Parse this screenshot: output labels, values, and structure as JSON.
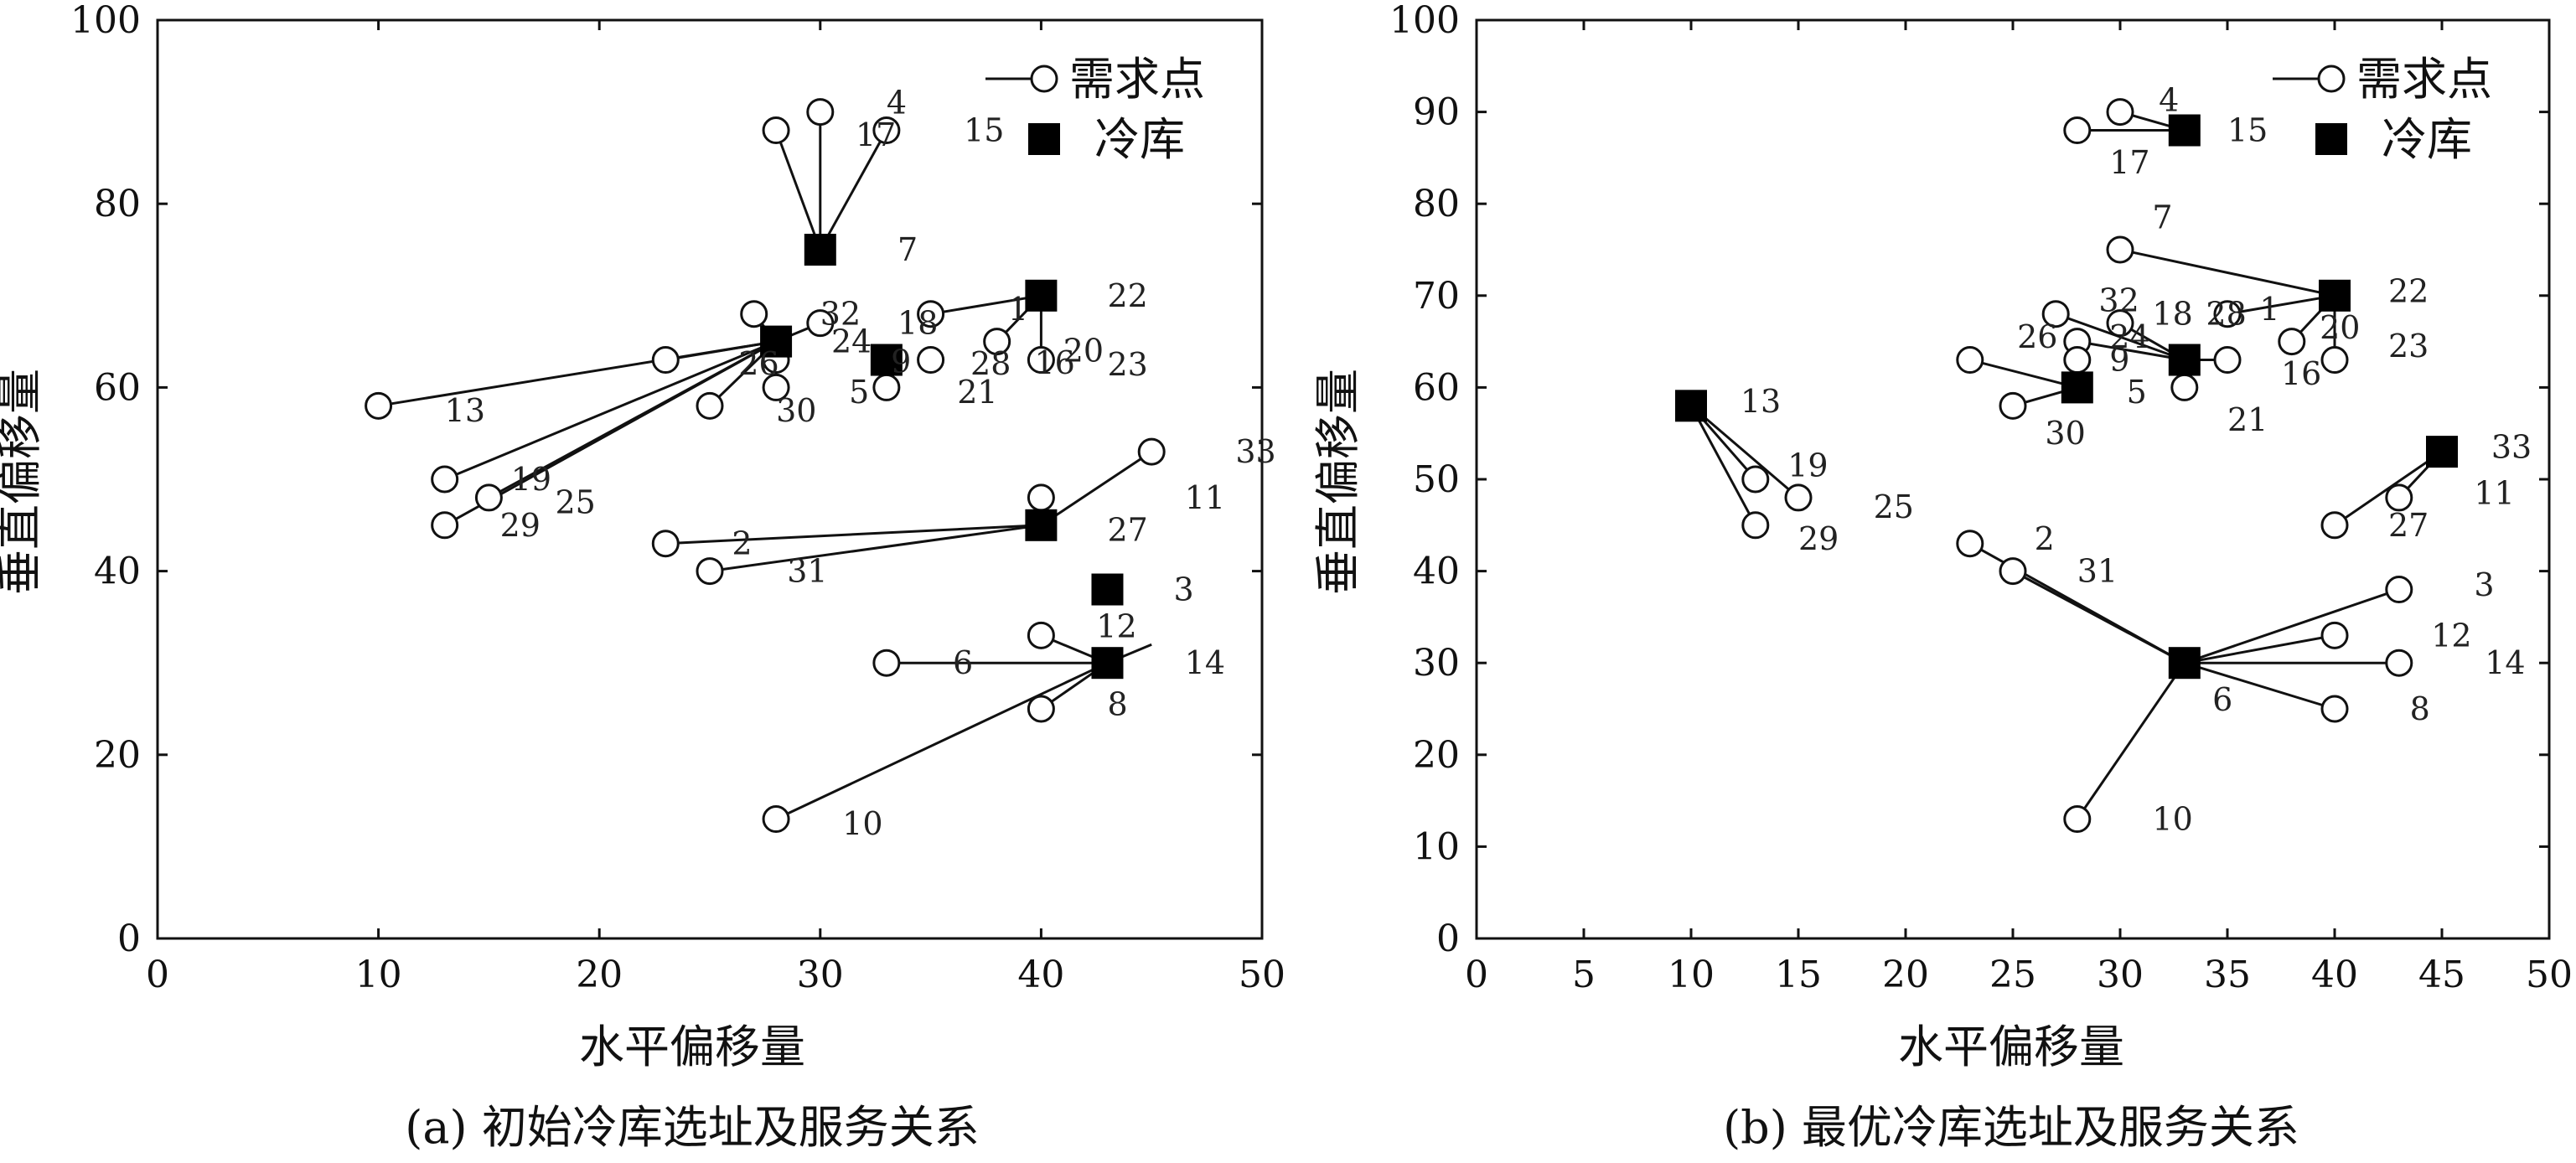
{
  "chart_data": [
    {
      "type": "scatter",
      "caption": "(a) 初始冷库选址及服务关系",
      "xlabel": "水平偏移量",
      "ylabel": "垂直偏移量",
      "xlim": [
        0,
        50
      ],
      "ylim": [
        0,
        100
      ],
      "xticks": [
        0,
        10,
        20,
        30,
        40,
        50
      ],
      "yticks": [
        0,
        20,
        40,
        60,
        80,
        100
      ],
      "legend": {
        "position": "top-right",
        "demand": "需求点",
        "storage": "冷库"
      },
      "demand_points": [
        {
          "id": "2",
          "x": 23,
          "y": 43
        },
        {
          "id": "4",
          "x": 30,
          "y": 90
        },
        {
          "id": "5",
          "x": 28,
          "y": 60
        },
        {
          "id": "6",
          "x": 33,
          "y": 30
        },
        {
          "id": "8",
          "x": 40,
          "y": 25
        },
        {
          "id": "9",
          "x": 28,
          "y": 63
        },
        {
          "id": "10",
          "x": 28,
          "y": 13
        },
        {
          "id": "11",
          "x": 40,
          "y": 48
        },
        {
          "id": "12",
          "x": 40,
          "y": 33
        },
        {
          "id": "13",
          "x": 10,
          "y": 58
        },
        {
          "id": "16",
          "x": 38,
          "y": 65
        },
        {
          "id": "17",
          "x": 28,
          "y": 88
        },
        {
          "id": "18",
          "x": 35,
          "y": 68
        },
        {
          "id": "19",
          "x": 13,
          "y": 50
        },
        {
          "id": "20",
          "x": 40,
          "y": 63
        },
        {
          "id": "21",
          "x": 33,
          "y": 60
        },
        {
          "id": "24",
          "x": 30,
          "y": 67
        },
        {
          "id": "25",
          "x": 15,
          "y": 48
        },
        {
          "id": "26",
          "x": 23,
          "y": 63
        },
        {
          "id": "28",
          "x": 35,
          "y": 63
        },
        {
          "id": "29",
          "x": 13,
          "y": 45
        },
        {
          "id": "30",
          "x": 25,
          "y": 58
        },
        {
          "id": "31",
          "x": 25,
          "y": 40
        },
        {
          "id": "32",
          "x": 27,
          "y": 68
        },
        {
          "id": "33",
          "x": 45,
          "y": 53
        },
        {
          "id": "15",
          "x": 33,
          "y": 88
        }
      ],
      "storage_points": [
        {
          "id": "7",
          "x": 30,
          "y": 75
        },
        {
          "id": "22",
          "x": 40,
          "y": 70
        },
        {
          "id": "1",
          "x": 28,
          "y": 65
        },
        {
          "id": "",
          "x": 33,
          "y": 63
        },
        {
          "id": "27",
          "x": 40,
          "y": 45
        },
        {
          "id": "3",
          "x": 43,
          "y": 38
        },
        {
          "id": "14",
          "x": 43,
          "y": 30
        }
      ],
      "labels": [
        {
          "text": "4",
          "x": 33,
          "y": 91
        },
        {
          "text": "17",
          "x": 31.6,
          "y": 87.5
        },
        {
          "text": "15",
          "x": 36.5,
          "y": 88
        },
        {
          "text": "7",
          "x": 33.5,
          "y": 75
        },
        {
          "text": "22",
          "x": 43,
          "y": 70
        },
        {
          "text": "1",
          "x": 38.5,
          "y": 68.5
        },
        {
          "text": "32",
          "x": 30,
          "y": 68
        },
        {
          "text": "18",
          "x": 33.5,
          "y": 67
        },
        {
          "text": "24",
          "x": 30.5,
          "y": 65
        },
        {
          "text": "26",
          "x": 26.3,
          "y": 62.6
        },
        {
          "text": "9",
          "x": 33.2,
          "y": 62.8
        },
        {
          "text": "28",
          "x": 36.8,
          "y": 62.6
        },
        {
          "text": "16",
          "x": 39.7,
          "y": 62.7
        },
        {
          "text": "20",
          "x": 41,
          "y": 64
        },
        {
          "text": "23",
          "x": 43,
          "y": 62.5
        },
        {
          "text": "5",
          "x": 31.3,
          "y": 59.5
        },
        {
          "text": "21",
          "x": 36.2,
          "y": 59.5
        },
        {
          "text": "30",
          "x": 28,
          "y": 57.5
        },
        {
          "text": "13",
          "x": 13,
          "y": 57.5
        },
        {
          "text": "19",
          "x": 16,
          "y": 50
        },
        {
          "text": "25",
          "x": 18,
          "y": 47.5
        },
        {
          "text": "29",
          "x": 15.5,
          "y": 45
        },
        {
          "text": "33",
          "x": 48.8,
          "y": 53
        },
        {
          "text": "11",
          "x": 46.5,
          "y": 48
        },
        {
          "text": "27",
          "x": 43,
          "y": 44.5
        },
        {
          "text": "2",
          "x": 26,
          "y": 43
        },
        {
          "text": "31",
          "x": 28.5,
          "y": 40
        },
        {
          "text": "3",
          "x": 46,
          "y": 38
        },
        {
          "text": "12",
          "x": 42.5,
          "y": 34
        },
        {
          "text": "14",
          "x": 46.5,
          "y": 30
        },
        {
          "text": "6",
          "x": 36,
          "y": 30
        },
        {
          "text": "8",
          "x": 43,
          "y": 25.5
        },
        {
          "text": "10",
          "x": 31,
          "y": 12.5
        }
      ],
      "links": [
        {
          "from": [
            30,
            75
          ],
          "to": [
            28,
            88
          ]
        },
        {
          "from": [
            30,
            75
          ],
          "to": [
            30,
            90
          ]
        },
        {
          "from": [
            30,
            75
          ],
          "to": [
            33,
            88
          ]
        },
        {
          "from": [
            40,
            70
          ],
          "to": [
            35,
            68
          ]
        },
        {
          "from": [
            40,
            70
          ],
          "to": [
            38,
            65
          ]
        },
        {
          "from": [
            40,
            70
          ],
          "to": [
            40,
            63
          ]
        },
        {
          "from": [
            28,
            65
          ],
          "to": [
            10,
            58
          ]
        },
        {
          "from": [
            28,
            65
          ],
          "to": [
            23,
            63
          ]
        },
        {
          "from": [
            28,
            65
          ],
          "to": [
            13,
            50
          ]
        },
        {
          "from": [
            28,
            65
          ],
          "to": [
            15,
            48
          ]
        },
        {
          "from": [
            28,
            65
          ],
          "to": [
            13,
            45
          ]
        },
        {
          "from": [
            28,
            65
          ],
          "to": [
            25,
            58
          ]
        },
        {
          "from": [
            28,
            65
          ],
          "to": [
            27,
            68
          ]
        },
        {
          "from": [
            28,
            65
          ],
          "to": [
            30,
            67
          ]
        },
        {
          "from": [
            28,
            65
          ],
          "to": [
            28,
            60
          ]
        },
        {
          "from": [
            28,
            65
          ],
          "to": [
            28,
            63
          ]
        },
        {
          "from": [
            40,
            45
          ],
          "to": [
            23,
            43
          ]
        },
        {
          "from": [
            40,
            45
          ],
          "to": [
            25,
            40
          ]
        },
        {
          "from": [
            40,
            45
          ],
          "to": [
            40,
            48
          ]
        },
        {
          "from": [
            40,
            45
          ],
          "to": [
            45,
            53
          ]
        },
        {
          "from": [
            43,
            30
          ],
          "to": [
            33,
            30
          ]
        },
        {
          "from": [
            43,
            30
          ],
          "to": [
            40,
            33
          ]
        },
        {
          "from": [
            43,
            30
          ],
          "to": [
            40,
            25
          ]
        },
        {
          "from": [
            43,
            30
          ],
          "to": [
            28,
            13
          ]
        },
        {
          "from": [
            43,
            30
          ],
          "to": [
            45,
            32
          ]
        }
      ]
    },
    {
      "type": "scatter",
      "caption": "(b) 最优冷库选址及服务关系",
      "xlabel": "水平偏移量",
      "ylabel": "垂直偏移量",
      "xlim": [
        0,
        50
      ],
      "ylim": [
        0,
        100
      ],
      "xticks": [
        0,
        5,
        10,
        15,
        20,
        25,
        30,
        35,
        40,
        45,
        50
      ],
      "yticks": [
        0,
        10,
        20,
        30,
        40,
        50,
        60,
        70,
        80,
        90,
        100
      ],
      "legend": {
        "position": "top-right",
        "demand": "需求点",
        "storage": "冷库"
      },
      "demand_points": [
        {
          "id": "4",
          "x": 30,
          "y": 90
        },
        {
          "id": "17",
          "x": 28,
          "y": 88
        },
        {
          "id": "7",
          "x": 30,
          "y": 75
        },
        {
          "id": "1",
          "x": 35,
          "y": 68
        },
        {
          "id": "32",
          "x": 27,
          "y": 68
        },
        {
          "id": "18",
          "x": 30,
          "y": 67
        },
        {
          "id": "24",
          "x": 28,
          "y": 65
        },
        {
          "id": "9",
          "x": 28,
          "y": 63
        },
        {
          "id": "16",
          "x": 35,
          "y": 63
        },
        {
          "id": "20",
          "x": 38,
          "y": 65
        },
        {
          "id": "23",
          "x": 40,
          "y": 63
        },
        {
          "id": "26",
          "x": 23,
          "y": 63
        },
        {
          "id": "21",
          "x": 33,
          "y": 60
        },
        {
          "id": "30",
          "x": 25,
          "y": 58
        },
        {
          "id": "19",
          "x": 13,
          "y": 50
        },
        {
          "id": "25",
          "x": 15,
          "y": 48
        },
        {
          "id": "29",
          "x": 13,
          "y": 45
        },
        {
          "id": "11",
          "x": 43,
          "y": 48
        },
        {
          "id": "27",
          "x": 40,
          "y": 45
        },
        {
          "id": "2",
          "x": 23,
          "y": 43
        },
        {
          "id": "31",
          "x": 25,
          "y": 40
        },
        {
          "id": "3",
          "x": 43,
          "y": 38
        },
        {
          "id": "12",
          "x": 40,
          "y": 33
        },
        {
          "id": "14",
          "x": 43,
          "y": 30
        },
        {
          "id": "8",
          "x": 40,
          "y": 25
        },
        {
          "id": "10",
          "x": 28,
          "y": 13
        }
      ],
      "storage_points": [
        {
          "id": "15",
          "x": 33,
          "y": 88
        },
        {
          "id": "22",
          "x": 40,
          "y": 70
        },
        {
          "id": "28",
          "x": 33,
          "y": 63
        },
        {
          "id": "5",
          "x": 28,
          "y": 60
        },
        {
          "id": "13",
          "x": 10,
          "y": 58
        },
        {
          "id": "33",
          "x": 45,
          "y": 53
        },
        {
          "id": "6",
          "x": 33,
          "y": 30
        }
      ],
      "labels": [
        {
          "text": "4",
          "x": 31.8,
          "y": 91.3
        },
        {
          "text": "15",
          "x": 35,
          "y": 88
        },
        {
          "text": "17",
          "x": 29.5,
          "y": 84.5
        },
        {
          "text": "7",
          "x": 31.5,
          "y": 78.5
        },
        {
          "text": "22",
          "x": 42.5,
          "y": 70.5
        },
        {
          "text": "1",
          "x": 36.5,
          "y": 68.5
        },
        {
          "text": "32",
          "x": 29,
          "y": 69.5
        },
        {
          "text": "18",
          "x": 31.5,
          "y": 68
        },
        {
          "text": "28",
          "x": 34,
          "y": 68
        },
        {
          "text": "26",
          "x": 25.2,
          "y": 65.5
        },
        {
          "text": "24",
          "x": 29.5,
          "y": 65.5
        },
        {
          "text": "9",
          "x": 29.5,
          "y": 63
        },
        {
          "text": "20",
          "x": 39.3,
          "y": 66.5
        },
        {
          "text": "23",
          "x": 42.5,
          "y": 64.5
        },
        {
          "text": "16",
          "x": 37.5,
          "y": 61.5
        },
        {
          "text": "5",
          "x": 30.3,
          "y": 59.5
        },
        {
          "text": "21",
          "x": 35,
          "y": 56.5
        },
        {
          "text": "30",
          "x": 26.5,
          "y": 55
        },
        {
          "text": "13",
          "x": 12.3,
          "y": 58.5
        },
        {
          "text": "19",
          "x": 14.5,
          "y": 51.5
        },
        {
          "text": "25",
          "x": 18.5,
          "y": 47
        },
        {
          "text": "29",
          "x": 15,
          "y": 43.5
        },
        {
          "text": "33",
          "x": 47.3,
          "y": 53.5
        },
        {
          "text": "11",
          "x": 46.5,
          "y": 48.5
        },
        {
          "text": "27",
          "x": 42.5,
          "y": 45
        },
        {
          "text": "2",
          "x": 26,
          "y": 43.5
        },
        {
          "text": "31",
          "x": 28,
          "y": 40
        },
        {
          "text": "3",
          "x": 46.5,
          "y": 38.5
        },
        {
          "text": "12",
          "x": 44.5,
          "y": 33
        },
        {
          "text": "14",
          "x": 47,
          "y": 30
        },
        {
          "text": "6",
          "x": 34.3,
          "y": 26
        },
        {
          "text": "8",
          "x": 43.5,
          "y": 25
        },
        {
          "text": "10",
          "x": 31.5,
          "y": 13
        }
      ],
      "links": [
        {
          "from": [
            33,
            88
          ],
          "to": [
            28,
            88
          ]
        },
        {
          "from": [
            33,
            88
          ],
          "to": [
            30,
            90
          ]
        },
        {
          "from": [
            40,
            70
          ],
          "to": [
            30,
            75
          ]
        },
        {
          "from": [
            40,
            70
          ],
          "to": [
            35,
            68
          ]
        },
        {
          "from": [
            40,
            70
          ],
          "to": [
            38,
            65
          ]
        },
        {
          "from": [
            40,
            70
          ],
          "to": [
            40,
            63
          ]
        },
        {
          "from": [
            33,
            63
          ],
          "to": [
            27,
            68
          ]
        },
        {
          "from": [
            33,
            63
          ],
          "to": [
            30,
            67
          ]
        },
        {
          "from": [
            33,
            63
          ],
          "to": [
            28,
            65
          ]
        },
        {
          "from": [
            33,
            63
          ],
          "to": [
            35,
            63
          ]
        },
        {
          "from": [
            33,
            63
          ],
          "to": [
            33,
            60
          ]
        },
        {
          "from": [
            28,
            60
          ],
          "to": [
            23,
            63
          ]
        },
        {
          "from": [
            28,
            60
          ],
          "to": [
            25,
            58
          ]
        },
        {
          "from": [
            28,
            60
          ],
          "to": [
            28,
            63
          ]
        },
        {
          "from": [
            10,
            58
          ],
          "to": [
            13,
            50
          ]
        },
        {
          "from": [
            10,
            58
          ],
          "to": [
            15,
            48
          ]
        },
        {
          "from": [
            10,
            58
          ],
          "to": [
            13,
            45
          ]
        },
        {
          "from": [
            45,
            53
          ],
          "to": [
            40,
            45
          ]
        },
        {
          "from": [
            45,
            53
          ],
          "to": [
            43,
            48
          ]
        },
        {
          "from": [
            33,
            30
          ],
          "to": [
            23,
            43
          ]
        },
        {
          "from": [
            33,
            30
          ],
          "to": [
            25,
            40
          ]
        },
        {
          "from": [
            33,
            30
          ],
          "to": [
            43,
            38
          ]
        },
        {
          "from": [
            33,
            30
          ],
          "to": [
            40,
            33
          ]
        },
        {
          "from": [
            33,
            30
          ],
          "to": [
            43,
            30
          ]
        },
        {
          "from": [
            33,
            30
          ],
          "to": [
            40,
            25
          ]
        },
        {
          "from": [
            33,
            30
          ],
          "to": [
            28,
            13
          ]
        }
      ]
    }
  ]
}
